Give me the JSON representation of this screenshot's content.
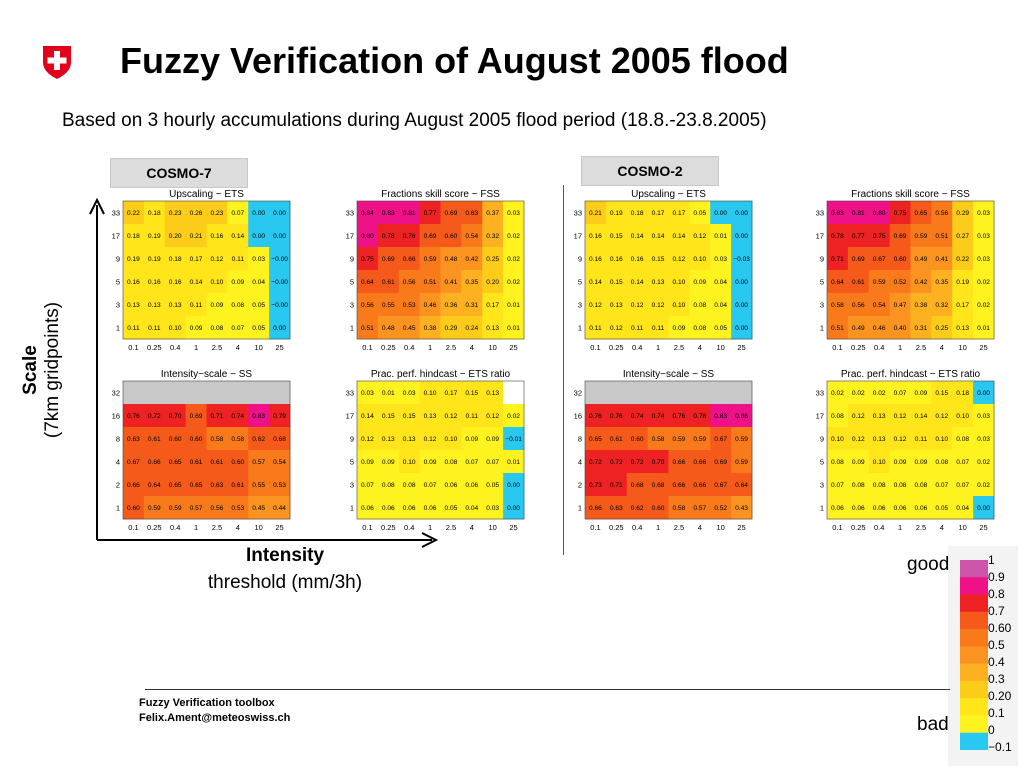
{
  "title": "Fuzzy Verification of August 2005 flood",
  "subtitle": "Based on 3 hourly accumulations during August 2005 flood period (18.8.-23.8.2005)",
  "model_labels": [
    "COSMO-7",
    "COSMO-2"
  ],
  "axis": {
    "scale_title": "Scale",
    "scale_sub": "(7km gridpoints)",
    "intensity_title": "Intensity",
    "intensity_sub": "threshold (mm/3h)"
  },
  "footer": {
    "line1": "Fuzzy Verification toolbox",
    "line2": "Felix.Ament@meteoswiss.ch"
  },
  "colorbar": {
    "good_label": "good",
    "bad_label": "bad",
    "labels": [
      "1",
      "0.9",
      "0.8",
      "0.7",
      "0.60",
      "0.5",
      "0.4",
      "0.3",
      "0.20",
      "0.1",
      "0",
      "−0.1"
    ],
    "colors": [
      "#cc55aa",
      "#ee1188",
      "#ee2222",
      "#f55a1a",
      "#f87a1a",
      "#fb9320",
      "#fdb020",
      "#fdcc18",
      "#ffe51a",
      "#fff31f",
      "#29c8f0"
    ]
  },
  "chart_data": [
    {
      "type": "heatmap",
      "title": "Upscaling − ETS",
      "model": "COSMO-7",
      "x": [
        "0.1",
        "0.25",
        "0.4",
        "1",
        "2.5",
        "4",
        "10",
        "25"
      ],
      "y": [
        "33",
        "17",
        "9",
        "5",
        "3",
        "1"
      ],
      "values": [
        [
          "0.22",
          "0.18",
          "0.23",
          "0.26",
          "0.23",
          "0.07",
          "0.00",
          "0.00"
        ],
        [
          "0.18",
          "0.19",
          "0.20",
          "0.21",
          "0.16",
          "0.14",
          "0.00",
          "0.00"
        ],
        [
          "0.19",
          "0.19",
          "0.18",
          "0.17",
          "0.12",
          "0.11",
          "0.03",
          "−0.00"
        ],
        [
          "0.16",
          "0.16",
          "0.16",
          "0.14",
          "0.10",
          "0.09",
          "0.04",
          "−0.00"
        ],
        [
          "0.13",
          "0.13",
          "0.13",
          "0.11",
          "0.09",
          "0.08",
          "0.05",
          "−0.00"
        ],
        [
          "0.11",
          "0.11",
          "0.10",
          "0.09",
          "0.08",
          "0.07",
          "0.05",
          "0.00"
        ]
      ]
    },
    {
      "type": "heatmap",
      "title": "Fractions skill score − FSS",
      "model": "COSMO-7",
      "x": [
        "0.1",
        "0.25",
        "0.4",
        "1",
        "2.5",
        "4",
        "10",
        "25"
      ],
      "y": [
        "33",
        "17",
        "9",
        "5",
        "3",
        "1"
      ],
      "values": [
        [
          "0.84",
          "0.83",
          "0.81",
          "0.77",
          "0.69",
          "0.63",
          "0.37",
          "0.03"
        ],
        [
          "0.80",
          "0.78",
          "0.76",
          "0.69",
          "0.60",
          "0.54",
          "0.32",
          "0.02"
        ],
        [
          "0.75",
          "0.69",
          "0.66",
          "0.59",
          "0.48",
          "0.42",
          "0.25",
          "0.02"
        ],
        [
          "0.64",
          "0.61",
          "0.56",
          "0.51",
          "0.41",
          "0.35",
          "0.20",
          "0.02"
        ],
        [
          "0.56",
          "0.55",
          "0.53",
          "0.46",
          "0.36",
          "0.31",
          "0.17",
          "0.01"
        ],
        [
          "0.51",
          "0.48",
          "0.45",
          "0.38",
          "0.29",
          "0.24",
          "0.13",
          "0.01"
        ]
      ]
    },
    {
      "type": "heatmap",
      "title": "Upscaling − ETS",
      "model": "COSMO-2",
      "x": [
        "0.1",
        "0.25",
        "0.4",
        "1",
        "2.5",
        "4",
        "10",
        "25"
      ],
      "y": [
        "33",
        "17",
        "9",
        "5",
        "3",
        "1"
      ],
      "values": [
        [
          "0.21",
          "0.19",
          "0.18",
          "0.17",
          "0.17",
          "0.05",
          "0.00",
          "0.00"
        ],
        [
          "0.16",
          "0.15",
          "0.14",
          "0.14",
          "0.14",
          "0.12",
          "0.01",
          "0.00"
        ],
        [
          "0.16",
          "0.16",
          "0.16",
          "0.15",
          "0.12",
          "0.10",
          "0.03",
          "−0.03"
        ],
        [
          "0.14",
          "0.15",
          "0.14",
          "0.13",
          "0.10",
          "0.09",
          "0.04",
          "0.00"
        ],
        [
          "0.12",
          "0.13",
          "0.12",
          "0.12",
          "0.10",
          "0.08",
          "0.04",
          "0.00"
        ],
        [
          "0.11",
          "0.12",
          "0.11",
          "0.11",
          "0.09",
          "0.08",
          "0.05",
          "0.00"
        ]
      ]
    },
    {
      "type": "heatmap",
      "title": "Fractions skill score − FSS",
      "model": "COSMO-2",
      "x": [
        "0.1",
        "0.25",
        "0.4",
        "1",
        "2.5",
        "4",
        "10",
        "25"
      ],
      "y": [
        "33",
        "17",
        "9",
        "5",
        "3",
        "1"
      ],
      "values": [
        [
          "0.83",
          "0.81",
          "0.80",
          "0.75",
          "0.65",
          "0.56",
          "0.29",
          "0.03"
        ],
        [
          "0.78",
          "0.77",
          "0.75",
          "0.69",
          "0.59",
          "0.51",
          "0.27",
          "0.03"
        ],
        [
          "0.71",
          "0.69",
          "0.67",
          "0.60",
          "0.49",
          "0.41",
          "0.22",
          "0.03"
        ],
        [
          "0.64",
          "0.61",
          "0.59",
          "0.52",
          "0.42",
          "0.35",
          "0.19",
          "0.02"
        ],
        [
          "0.58",
          "0.56",
          "0.54",
          "0.47",
          "0.38",
          "0.32",
          "0.17",
          "0.02"
        ],
        [
          "0.51",
          "0.49",
          "0.46",
          "0.40",
          "0.31",
          "0.25",
          "0.13",
          "0.01"
        ]
      ]
    },
    {
      "type": "heatmap",
      "title": "Intensity−scale − SS",
      "model": "COSMO-7",
      "x": [
        "0.1",
        "0.25",
        "0.4",
        "1",
        "2.5",
        "4",
        "10",
        "25"
      ],
      "y": [
        "32",
        "16",
        "8",
        "4",
        "2",
        "1"
      ],
      "values": [
        [
          null,
          null,
          null,
          null,
          null,
          null,
          null,
          null
        ],
        [
          "0.76",
          "0.72",
          "0.70",
          "0.69",
          "0.71",
          "0.74",
          "0.83",
          "0.79"
        ],
        [
          "0.63",
          "0.61",
          "0.60",
          "0.60",
          "0.58",
          "0.58",
          "0.62",
          "0.68"
        ],
        [
          "0.67",
          "0.66",
          "0.65",
          "0.61",
          "0.61",
          "0.60",
          "0.57",
          "0.54"
        ],
        [
          "0.66",
          "0.64",
          "0.65",
          "0.65",
          "0.63",
          "0.61",
          "0.55",
          "0.53"
        ],
        [
          "0.60",
          "0.59",
          "0.59",
          "0.57",
          "0.56",
          "0.53",
          "0.45",
          "0.44"
        ]
      ]
    },
    {
      "type": "heatmap",
      "title": "Prac. perf. hindcast − ETS ratio",
      "model": "COSMO-7",
      "x": [
        "0.1",
        "0.25",
        "0.4",
        "1",
        "2.5",
        "4",
        "10",
        "25"
      ],
      "y": [
        "33",
        "17",
        "9",
        "5",
        "3",
        "1"
      ],
      "values": [
        [
          "0.03",
          "0.01",
          "0.03",
          "0.10",
          "0.17",
          "0.15",
          "0.13",
          null
        ],
        [
          "0.14",
          "0.15",
          "0.15",
          "0.13",
          "0.12",
          "0.11",
          "0.12",
          "0.02"
        ],
        [
          "0.12",
          "0.13",
          "0.13",
          "0.12",
          "0.10",
          "0.09",
          "0.09",
          "−0.01"
        ],
        [
          "0.09",
          "0.09",
          "0.10",
          "0.09",
          "0.08",
          "0.07",
          "0.07",
          "0.01"
        ],
        [
          "0.07",
          "0.08",
          "0.08",
          "0.07",
          "0.06",
          "0.06",
          "0.05",
          "0.00"
        ],
        [
          "0.06",
          "0.06",
          "0.06",
          "0.06",
          "0.05",
          "0.04",
          "0.03",
          "0.00"
        ]
      ]
    },
    {
      "type": "heatmap",
      "title": "Intensity−scale − SS",
      "model": "COSMO-2",
      "x": [
        "0.1",
        "0.25",
        "0.4",
        "1",
        "2.5",
        "4",
        "10",
        "25"
      ],
      "y": [
        "32",
        "16",
        "8",
        "4",
        "2",
        "1"
      ],
      "values": [
        [
          null,
          null,
          null,
          null,
          null,
          null,
          null,
          null
        ],
        [
          "0.76",
          "0.76",
          "0.74",
          "0.74",
          "0.76",
          "0.78",
          "0.83",
          "0.86"
        ],
        [
          "0.65",
          "0.61",
          "0.60",
          "0.58",
          "0.59",
          "0.59",
          "0.67",
          "0.59"
        ],
        [
          "0.72",
          "0.72",
          "0.72",
          "0.70",
          "0.66",
          "0.66",
          "0.69",
          "0.59"
        ],
        [
          "0.73",
          "0.71",
          "0.68",
          "0.68",
          "0.66",
          "0.66",
          "0.67",
          "0.64"
        ],
        [
          "0.66",
          "0.63",
          "0.62",
          "0.60",
          "0.58",
          "0.57",
          "0.52",
          "0.43"
        ]
      ]
    },
    {
      "type": "heatmap",
      "title": "Prac. perf. hindcast − ETS ratio",
      "model": "COSMO-2",
      "x": [
        "0.1",
        "0.25",
        "0.4",
        "1",
        "2.5",
        "4",
        "10",
        "25"
      ],
      "y": [
        "33",
        "17",
        "9",
        "5",
        "3",
        "1"
      ],
      "values": [
        [
          "0.02",
          "0.02",
          "0.02",
          "0.07",
          "0.09",
          "0.15",
          "0.18",
          "0.00"
        ],
        [
          "0.08",
          "0.12",
          "0.13",
          "0.12",
          "0.14",
          "0.12",
          "0.10",
          "0.03"
        ],
        [
          "0.10",
          "0.12",
          "0.13",
          "0.12",
          "0.11",
          "0.10",
          "0.08",
          "0.03"
        ],
        [
          "0.08",
          "0.09",
          "0.10",
          "0.09",
          "0.09",
          "0.08",
          "0.07",
          "0.02"
        ],
        [
          "0.07",
          "0.08",
          "0.08",
          "0.08",
          "0.08",
          "0.07",
          "0.07",
          "0.02"
        ],
        [
          "0.06",
          "0.06",
          "0.06",
          "0.06",
          "0.06",
          "0.05",
          "0.04",
          "0.00"
        ]
      ]
    }
  ]
}
